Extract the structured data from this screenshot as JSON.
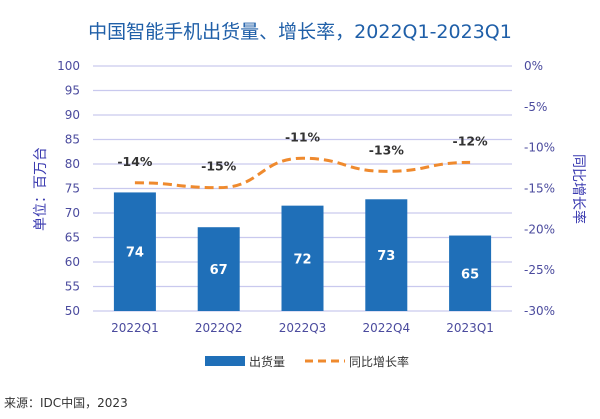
{
  "chart_data": {
    "type": "bar",
    "title": "中国智能手机出货量、增长率，2022Q1-2023Q1",
    "categories": [
      "2022Q1",
      "2022Q2",
      "2022Q3",
      "2022Q4",
      "2023Q1"
    ],
    "series": [
      {
        "name": "出货量",
        "type": "bar",
        "axis": "left",
        "values": [
          74.2,
          67.1,
          71.5,
          72.8,
          65.4
        ],
        "labels": [
          "74",
          "67",
          "72",
          "73",
          "65"
        ],
        "color": "#1f6fb8"
      },
      {
        "name": "同比增长率",
        "type": "line",
        "axis": "right",
        "style": "dashed",
        "values": [
          -14.3,
          -14.9,
          -11.3,
          -12.9,
          -11.8
        ],
        "labels": [
          "-14%",
          "-15%",
          "-11%",
          "-13%",
          "-12%"
        ],
        "color": "#ef8a2e"
      }
    ],
    "ylabel": "单位：百万台",
    "ylim": [
      50,
      100
    ],
    "yticks": [
      "50",
      "55",
      "60",
      "65",
      "70",
      "75",
      "80",
      "85",
      "90",
      "95",
      "100"
    ],
    "y2label": "同比增长率",
    "y2lim": [
      -30,
      0
    ],
    "y2ticks": [
      "-30%",
      "-25%",
      "-20%",
      "-15%",
      "-10%",
      "-5%",
      "0%"
    ],
    "grid": true,
    "legend": "bottom",
    "source": "来源：IDC中国，2023"
  }
}
